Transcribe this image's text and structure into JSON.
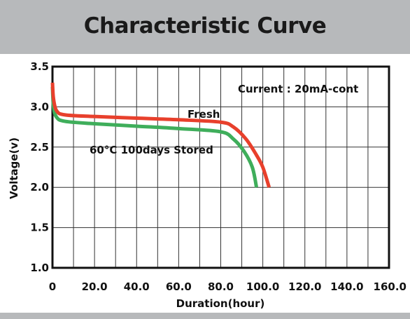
{
  "title": "Characteristic Curve",
  "chart_data": {
    "type": "line",
    "xlabel": "Duration(hour)",
    "ylabel": "Voltage(v)",
    "xlim": [
      0,
      160
    ],
    "ylim": [
      1.0,
      3.5
    ],
    "x_ticks": [
      0,
      20,
      40,
      60,
      80,
      100,
      120,
      140,
      160
    ],
    "x_tick_labels": [
      "0",
      "20.0",
      "40.0",
      "60.0",
      "80.0",
      "100.0",
      "120.0",
      "140.0",
      "160.0"
    ],
    "y_ticks": [
      1.0,
      1.5,
      2.0,
      2.5,
      3.0,
      3.5
    ],
    "y_tick_labels": [
      "1.0",
      "1.5",
      "2.0",
      "2.5",
      "3.0",
      "3.5"
    ],
    "grid": true,
    "annotation": "Current : 20mA-cont",
    "series": [
      {
        "name": "Fresh",
        "color": "#e8402c",
        "points": [
          [
            0,
            3.3
          ],
          [
            0.5,
            3.1
          ],
          [
            2,
            2.95
          ],
          [
            6,
            2.9
          ],
          [
            20,
            2.88
          ],
          [
            40,
            2.86
          ],
          [
            60,
            2.84
          ],
          [
            80,
            2.81
          ],
          [
            86,
            2.75
          ],
          [
            92,
            2.6
          ],
          [
            97,
            2.4
          ],
          [
            100,
            2.25
          ],
          [
            103,
            2.0
          ]
        ]
      },
      {
        "name": "60°C  100days Stored",
        "color": "#3fae5b",
        "points": [
          [
            0,
            3.25
          ],
          [
            0.5,
            3.0
          ],
          [
            2,
            2.87
          ],
          [
            6,
            2.82
          ],
          [
            20,
            2.79
          ],
          [
            40,
            2.76
          ],
          [
            60,
            2.73
          ],
          [
            80,
            2.69
          ],
          [
            86,
            2.6
          ],
          [
            91,
            2.45
          ],
          [
            95,
            2.25
          ],
          [
            97,
            2.0
          ]
        ]
      }
    ]
  }
}
